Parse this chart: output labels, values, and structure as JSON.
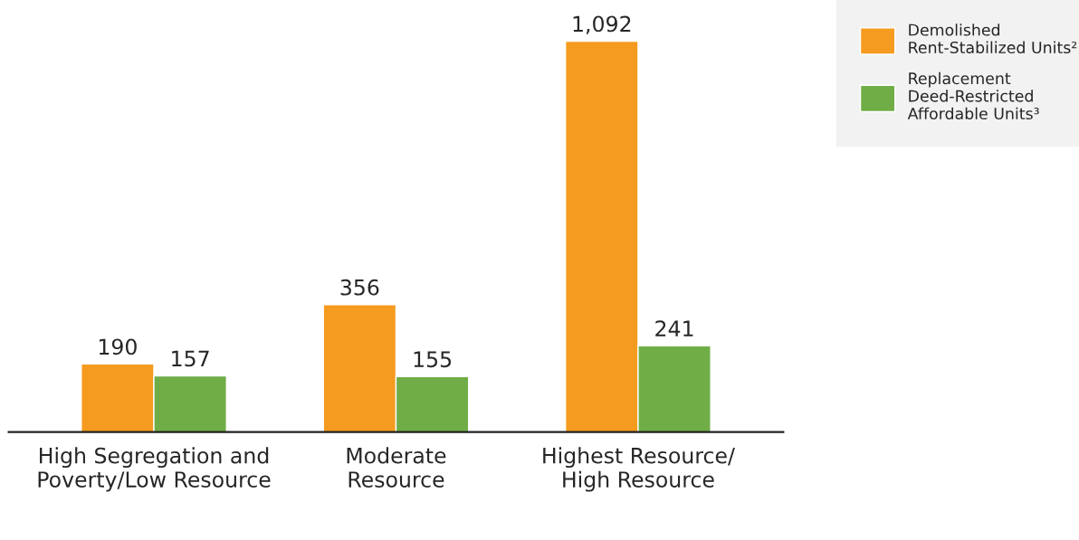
{
  "chart_data": {
    "type": "bar",
    "categories": [
      "High Segregation and\nPoverty/Low Resource",
      "Moderate\nResource",
      "Highest Resource/\nHigh Resource"
    ],
    "series": [
      {
        "name": "Demolished\nRent-Stabilized Units²",
        "color": "#f59b1f",
        "values": [
          190,
          356,
          1092
        ],
        "value_labels": [
          "190",
          "356",
          "1,092"
        ]
      },
      {
        "name": "Replacement\nDeed-Restricted\nAffordable Units³",
        "color": "#70ad47",
        "values": [
          157,
          155,
          241
        ],
        "value_labels": [
          "157",
          "155",
          "241"
        ]
      }
    ],
    "legend": "top right",
    "grid": false
  }
}
